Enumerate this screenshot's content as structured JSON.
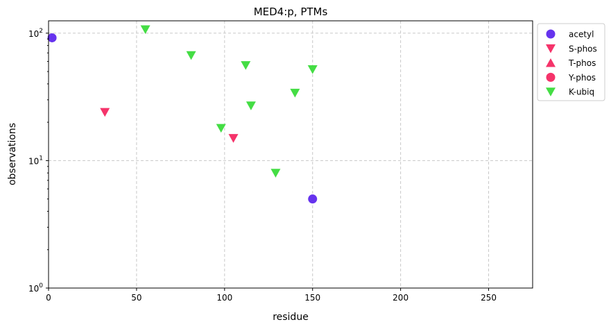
{
  "chart_data": {
    "type": "scatter",
    "title": "MED4:p, PTMs",
    "xlabel": "residue",
    "ylabel": "observations",
    "xlim": [
      0,
      275
    ],
    "ylim": [
      1,
      125
    ],
    "yscale": "log",
    "grid": true,
    "legend_position": "outside-top-right",
    "x_ticks": [
      0,
      50,
      100,
      150,
      200,
      250
    ],
    "y_ticks": [
      {
        "value": 1,
        "base": "10",
        "exp": "0"
      },
      {
        "value": 10,
        "base": "10",
        "exp": "1"
      },
      {
        "value": 100,
        "base": "10",
        "exp": "2"
      }
    ],
    "series": [
      {
        "name": "acetyl",
        "marker": "circle",
        "color": "#6633ee",
        "points": [
          {
            "x": 2,
            "y": 92
          },
          {
            "x": 150,
            "y": 5
          }
        ]
      },
      {
        "name": "S-phos",
        "marker": "triangle-down",
        "color": "#f5336a",
        "points": [
          {
            "x": 32,
            "y": 24
          },
          {
            "x": 105,
            "y": 15
          }
        ]
      },
      {
        "name": "T-phos",
        "marker": "triangle-up",
        "color": "#f5336a",
        "points": []
      },
      {
        "name": "Y-phos",
        "marker": "circle",
        "color": "#f5336a",
        "points": []
      },
      {
        "name": "K-ubiq",
        "marker": "triangle-down",
        "color": "#44dd44",
        "points": [
          {
            "x": 55,
            "y": 107
          },
          {
            "x": 81,
            "y": 67
          },
          {
            "x": 98,
            "y": 18
          },
          {
            "x": 112,
            "y": 56
          },
          {
            "x": 115,
            "y": 27
          },
          {
            "x": 129,
            "y": 8
          },
          {
            "x": 140,
            "y": 34
          },
          {
            "x": 150,
            "y": 52
          }
        ]
      }
    ]
  }
}
